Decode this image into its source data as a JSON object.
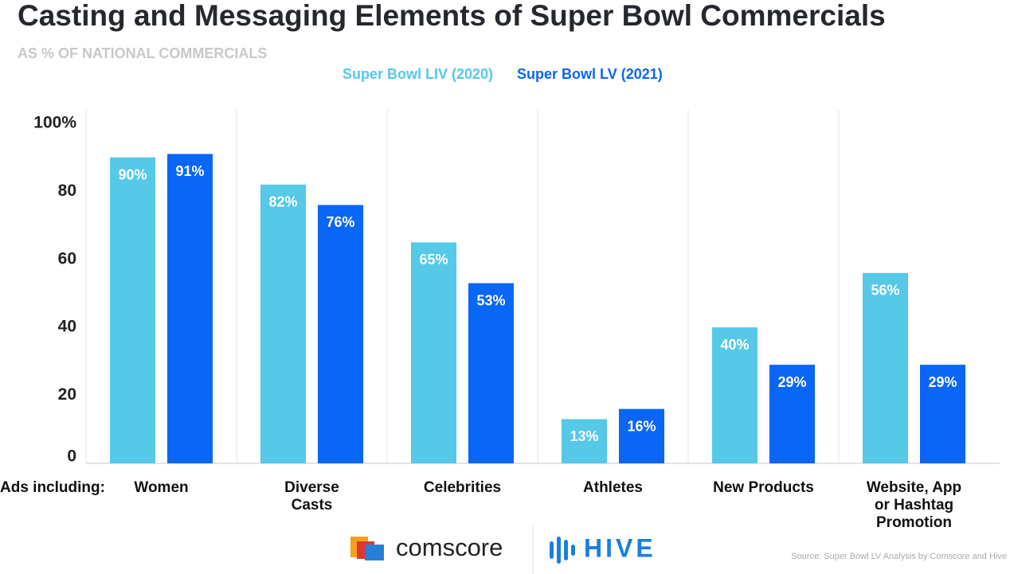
{
  "chart_data": {
    "type": "bar",
    "title": "Casting and Messaging Elements of Super Bowl Commercials",
    "subtitle": "AS % OF NATIONAL COMMERCIALS",
    "x_label": "Ads including:",
    "categories": [
      "Women",
      "Diverse\nCasts",
      "Celebrities",
      "Athletes",
      "New Products",
      "Website, App\nor Hashtag\nPromotion"
    ],
    "series": [
      {
        "name": "Super Bowl LIV (2020)",
        "color": "#56c8e8",
        "values": [
          90,
          82,
          65,
          13,
          40,
          56
        ],
        "value_labels": [
          "90%",
          "82%",
          "65%",
          "13%",
          "40%",
          "56%"
        ]
      },
      {
        "name": "Super Bowl LV (2021)",
        "color": "#0a66f5",
        "values": [
          91,
          76,
          53,
          16,
          29,
          29
        ],
        "value_labels": [
          "91%",
          "76%",
          "53%",
          "16%",
          "29%",
          "29%"
        ]
      }
    ],
    "ylim": [
      0,
      100
    ],
    "yticks": [
      0,
      20,
      40,
      60,
      80,
      {
        "value": 100,
        "label": "100%"
      }
    ],
    "source": "Source: Super Bowl LV Analysis by Comscore and Hive",
    "logos": [
      "comscore",
      "HIVE"
    ]
  }
}
